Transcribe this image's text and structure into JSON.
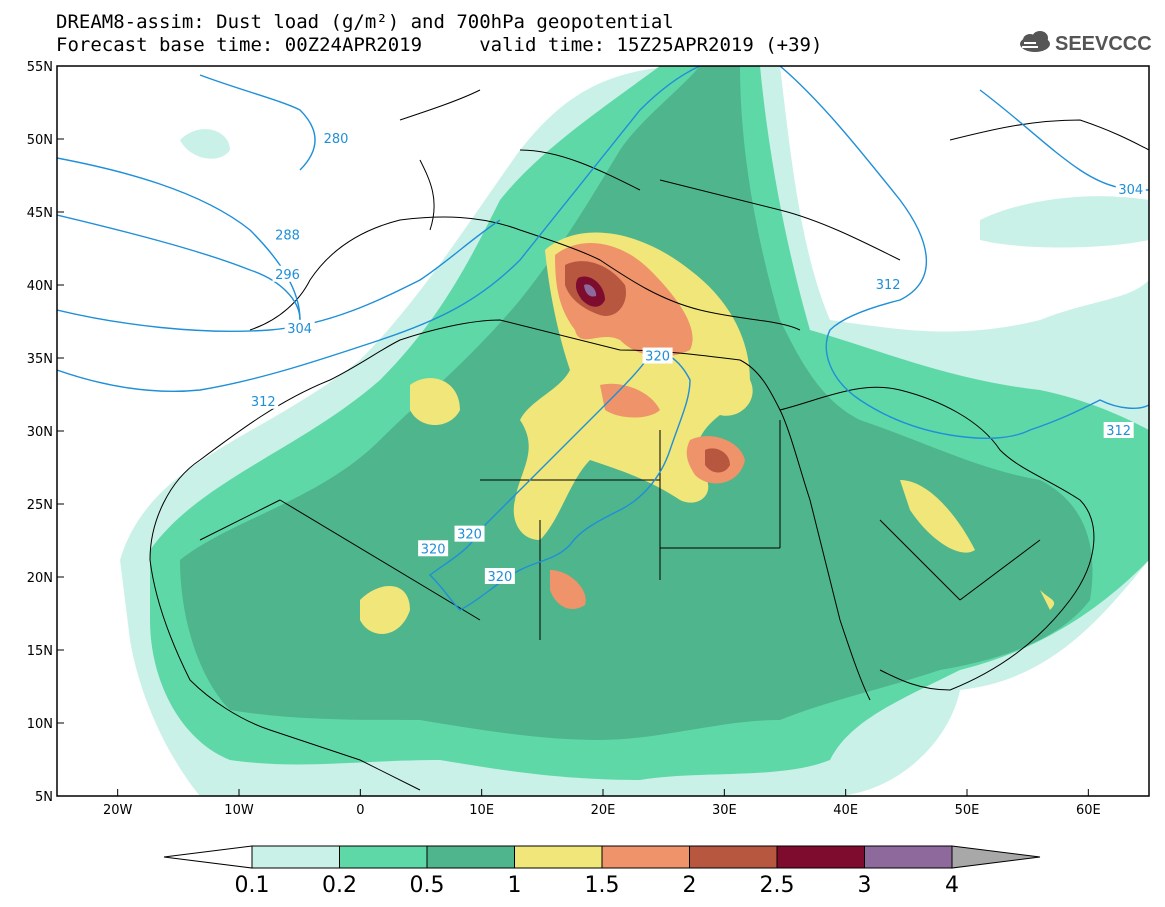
{
  "title_line1": "DREAM8-assim: Dust load (g/m²) and 700hPa geopotential",
  "title_line2": "Forecast base time: 00Z24APR2019     valid time: 15Z25APR2019 (+39)",
  "logo_text": "SEEVCCC",
  "colors": {
    "frame": "#000000",
    "contour_line": "#1f8fd8",
    "coast_border": "#000000"
  },
  "axes": {
    "lon_ticks": [
      "20W",
      "10W",
      "0",
      "10E",
      "20E",
      "30E",
      "40E",
      "50E",
      "60E"
    ],
    "lat_ticks": [
      "55N",
      "50N",
      "45N",
      "40N",
      "35N",
      "30N",
      "25N",
      "20N",
      "15N",
      "10N",
      "5N"
    ],
    "lon_range": [
      -25,
      65
    ],
    "lat_range": [
      5,
      55
    ]
  },
  "colorbar": {
    "levels": [
      "0.1",
      "0.2",
      "0.5",
      "1",
      "1.5",
      "2",
      "2.5",
      "3",
      "4"
    ],
    "colors": [
      "#c9f1e8",
      "#5fd8a8",
      "#4fb58c",
      "#f0e67a",
      "#ee936a",
      "#b7573f",
      "#7e0c2e",
      "#8e6a9c",
      "#a8a8a8"
    ],
    "under_color": "#ffffff"
  },
  "contour_labels": [
    {
      "text": "280",
      "lon": -2,
      "lat": 50
    },
    {
      "text": "288",
      "lon": -6,
      "lat": 43.4
    },
    {
      "text": "296",
      "lon": -6,
      "lat": 40.7
    },
    {
      "text": "304",
      "lon": -5,
      "lat": 37
    },
    {
      "text": "312",
      "lon": -8,
      "lat": 32
    },
    {
      "text": "320",
      "lon": 24.5,
      "lat": 35.1
    },
    {
      "text": "320",
      "lon": 6,
      "lat": 21.9
    },
    {
      "text": "320",
      "lon": 9,
      "lat": 22.9
    },
    {
      "text": "320",
      "lon": 11.5,
      "lat": 20
    },
    {
      "text": "312",
      "lon": 43.5,
      "lat": 40
    },
    {
      "text": "312",
      "lon": 62.5,
      "lat": 30
    },
    {
      "text": "304",
      "lon": 63.5,
      "lat": 46.5
    }
  ]
}
